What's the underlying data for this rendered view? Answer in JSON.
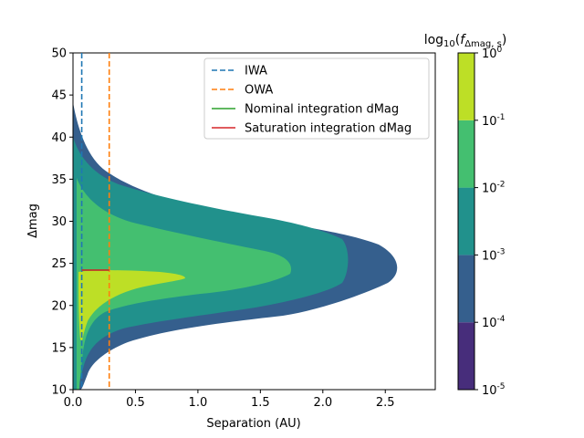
{
  "chart_data": {
    "type": "heatmap",
    "xlabel": "Separation (AU)",
    "ylabel": "Δmag",
    "xlim": [
      0,
      2.9
    ],
    "ylim": [
      10,
      50
    ],
    "x_ticks": [
      {
        "value": 0.0,
        "label": "0.0"
      },
      {
        "value": 0.5,
        "label": "0.5"
      },
      {
        "value": 1.0,
        "label": "1.0"
      },
      {
        "value": 1.5,
        "label": "1.5"
      },
      {
        "value": 2.0,
        "label": "2.0"
      },
      {
        "value": 2.5,
        "label": "2.5"
      }
    ],
    "y_ticks": [
      {
        "value": 10,
        "label": "10"
      },
      {
        "value": 15,
        "label": "15"
      },
      {
        "value": 20,
        "label": "20"
      },
      {
        "value": 25,
        "label": "25"
      },
      {
        "value": 30,
        "label": "30"
      },
      {
        "value": 35,
        "label": "35"
      },
      {
        "value": 40,
        "label": "40"
      },
      {
        "value": 45,
        "label": "45"
      },
      {
        "value": 50,
        "label": "50"
      }
    ],
    "lines": [
      {
        "name": "IWA",
        "kind": "vertical",
        "x": 0.07,
        "color": "#1f77b4",
        "style": "dashed"
      },
      {
        "name": "OWA",
        "kind": "vertical",
        "x": 0.29,
        "color": "#ff7f0e",
        "style": "dashed"
      },
      {
        "name": "Nominal integration dMag",
        "kind": "segment",
        "x": [
          0.07,
          0.29
        ],
        "y": 24.2,
        "color": "#2ca02c",
        "style": "solid"
      },
      {
        "name": "Saturation integration dMag",
        "kind": "segment",
        "x": [
          0.07,
          0.29
        ],
        "y": 24.2,
        "color": "#d62728",
        "style": "solid"
      }
    ],
    "legend_position": "top-right",
    "density_regions": [
      {
        "level": "1e-4 to 1e-3",
        "color": "#355f8d",
        "max_sep": 2.7,
        "dmag_bounds": [
          10,
          42
        ]
      },
      {
        "level": "1e-3 to 1e-2",
        "color": "#21918c",
        "max_sep": 2.2,
        "dmag_bounds": [
          10.5,
          37
        ]
      },
      {
        "level": "1e-2 to 1e-1",
        "color": "#44bf70",
        "max_sep": 1.8,
        "dmag_bounds": [
          13,
          31
        ]
      },
      {
        "level": "1e-1 to 1e0",
        "color": "#bddf26",
        "max_sep": 0.9,
        "dmag_bounds": [
          15.5,
          24
        ]
      }
    ],
    "colorbar": {
      "title": "log10(f_Δmag,s)",
      "levels": [
        {
          "label": "10",
          "exp": "-5"
        },
        {
          "label": "10",
          "exp": "-4"
        },
        {
          "label": "10",
          "exp": "-3"
        },
        {
          "label": "10",
          "exp": "-2"
        },
        {
          "label": "10",
          "exp": "-1"
        },
        {
          "label": "10",
          "exp": "0"
        }
      ],
      "colors": [
        "#472d7b",
        "#355f8d",
        "#21918c",
        "#44bf70",
        "#bddf26"
      ]
    }
  }
}
